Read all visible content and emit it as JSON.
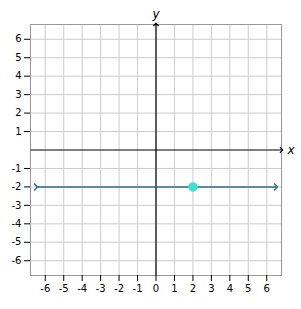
{
  "chart_data": {
    "type": "line",
    "xlabel": "x",
    "ylabel": "y",
    "xlim": [
      -6.8,
      6.8
    ],
    "ylim": [
      -6.8,
      6.8
    ],
    "xticks": [
      -6,
      -5,
      -4,
      -3,
      -2,
      -1,
      0,
      1,
      2,
      3,
      4,
      5,
      6
    ],
    "yticks": [
      -6,
      -5,
      -4,
      -3,
      -2,
      -1,
      1,
      2,
      3,
      4,
      5,
      6
    ],
    "grid": true,
    "series": [
      {
        "type": "line",
        "color": "#2E6B8A",
        "marker": "arrow",
        "x": [
          -6.5,
          6.5
        ],
        "values": [
          -2,
          -2
        ]
      },
      {
        "type": "scatter",
        "color": "#40E0D0",
        "marker": "circle",
        "x": [
          2
        ],
        "values": [
          -2
        ]
      }
    ]
  }
}
